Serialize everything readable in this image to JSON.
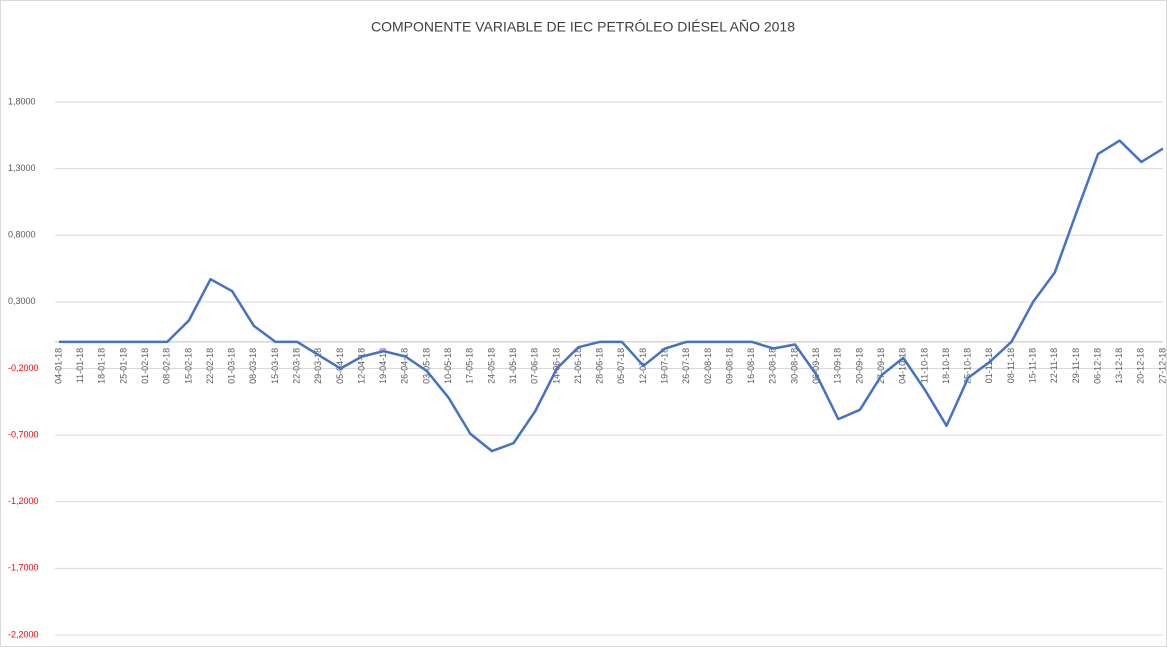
{
  "chart_data": {
    "type": "line",
    "title": "COMPONENTE VARIABLE DE IEC PETRÓLEO DIÉSEL AÑO 2018",
    "categories": [
      "04-01-18",
      "11-01-18",
      "18-01-18",
      "25-01-18",
      "01-02-18",
      "08-02-18",
      "15-02-18",
      "22-02-18",
      "01-03-18",
      "08-03-18",
      "15-03-18",
      "22-03-18",
      "29-03-18",
      "05-04-18",
      "12-04-18",
      "19-04-18",
      "26-04-18",
      "03-05-18",
      "10-05-18",
      "17-05-18",
      "24-05-18",
      "31-05-18",
      "07-06-18",
      "14-06-18",
      "21-06-18",
      "28-06-18",
      "05-07-18",
      "12-07-18",
      "19-07-18",
      "26-07-18",
      "02-08-18",
      "09-08-18",
      "16-08-18",
      "23-08-18",
      "30-08-18",
      "06-09-18",
      "13-09-18",
      "20-09-18",
      "27-09-18",
      "04-10-18",
      "11-10-18",
      "18-10-18",
      "25-10-18",
      "01-11-18",
      "08-11-18",
      "15-11-18",
      "22-11-18",
      "29-11-18",
      "06-12-18",
      "13-12-18",
      "20-12-18",
      "27-12-18"
    ],
    "series": [
      {
        "color": "#4472c4",
        "values": [
          0,
          0,
          0,
          0,
          0,
          0,
          0.16,
          0.47,
          0.38,
          0.12,
          0,
          0,
          -0.1,
          -0.2,
          -0.11,
          -0.07,
          -0.11,
          -0.22,
          -0.42,
          -0.69,
          -0.82,
          -0.76,
          -0.52,
          -0.2,
          -0.04,
          0,
          0,
          -0.18,
          -0.05,
          0,
          0,
          0,
          0,
          -0.05,
          -0.02,
          -0.25,
          -0.58,
          -0.51,
          -0.25,
          -0.12,
          -0.36,
          -0.63,
          -0.27,
          -0.15,
          0,
          0.3,
          0.52,
          0.97,
          1.41,
          1.51,
          1.35,
          1.45
        ]
      }
    ],
    "ylim": [
      -2.2,
      2.25
    ],
    "yticks": [
      {
        "value": -2.2,
        "label": "-2,2000"
      },
      {
        "value": -1.7,
        "label": "-1,7000"
      },
      {
        "value": -1.2,
        "label": "-1,2000"
      },
      {
        "value": -0.7,
        "label": "-0,7000"
      },
      {
        "value": -0.2,
        "label": "-0,2000"
      },
      {
        "value": 0.3,
        "label": "0,3000"
      },
      {
        "value": 0.8,
        "label": "0,8000"
      },
      {
        "value": 1.3,
        "label": "1,3000"
      },
      {
        "value": 1.8,
        "label": "1,8000"
      }
    ],
    "grid": true,
    "negative_tick_color": "#ff0000"
  }
}
